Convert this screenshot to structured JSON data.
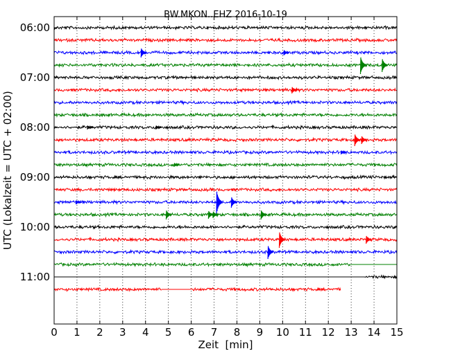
{
  "chart_data": {
    "type": "line",
    "title": "BW.MKON..EHZ 2016-10-19",
    "xlabel": "Zeit  [min]",
    "ylabel": "UTC (Lokalzeit = UTC + 02:00)",
    "xlim": [
      0,
      15
    ],
    "x_ticks": [
      "0",
      "1",
      "2",
      "3",
      "4",
      "5",
      "6",
      "7",
      "8",
      "9",
      "10",
      "11",
      "12",
      "13",
      "14",
      "15"
    ],
    "y_tick_labels": [
      "06:00",
      "07:00",
      "08:00",
      "09:00",
      "10:00",
      "11:00"
    ],
    "grid": "vertical-dotted",
    "trace_colors": [
      "#000000",
      "#ff0000",
      "#0000ff",
      "#008000"
    ],
    "traces": [
      {
        "start": "06:00",
        "color": "#000000",
        "segments": [
          [
            0,
            15
          ]
        ],
        "events": []
      },
      {
        "start": "06:15",
        "color": "#ff0000",
        "segments": [
          [
            0,
            15
          ]
        ],
        "events": []
      },
      {
        "start": "06:30",
        "color": "#0000ff",
        "segments": [
          [
            0,
            15
          ]
        ],
        "events": [
          {
            "t": 3.85,
            "amp": 7
          },
          {
            "t": 10.1,
            "amp": 4
          }
        ]
      },
      {
        "start": "06:45",
        "color": "#008000",
        "segments": [
          [
            0,
            15
          ]
        ],
        "events": [
          {
            "t": 13.45,
            "amp": 13
          },
          {
            "t": 14.4,
            "amp": 10
          }
        ]
      },
      {
        "start": "07:00",
        "color": "#000000",
        "segments": [
          [
            0,
            15
          ]
        ],
        "events": []
      },
      {
        "start": "07:15",
        "color": "#ff0000",
        "segments": [
          [
            0,
            15
          ]
        ],
        "events": [
          {
            "t": 10.45,
            "amp": 5
          }
        ]
      },
      {
        "start": "07:30",
        "color": "#0000ff",
        "segments": [
          [
            0,
            15
          ]
        ],
        "events": []
      },
      {
        "start": "07:45",
        "color": "#008000",
        "segments": [
          [
            0,
            15
          ]
        ],
        "events": []
      },
      {
        "start": "08:00",
        "color": "#000000",
        "segments": [
          [
            0,
            15
          ]
        ],
        "events": [
          {
            "t": 1.5,
            "amp": 3
          },
          {
            "t": 4.5,
            "amp": 3
          }
        ]
      },
      {
        "start": "08:15",
        "color": "#ff0000",
        "segments": [
          [
            0,
            15
          ]
        ],
        "events": [
          {
            "t": 13.2,
            "amp": 9
          },
          {
            "t": 13.5,
            "amp": 6
          }
        ]
      },
      {
        "start": "08:30",
        "color": "#0000ff",
        "segments": [
          [
            0,
            15
          ]
        ],
        "events": [
          {
            "t": 12.6,
            "amp": 3
          }
        ]
      },
      {
        "start": "08:45",
        "color": "#008000",
        "segments": [
          [
            0,
            15
          ]
        ],
        "events": [
          {
            "t": 5.3,
            "amp": 3
          }
        ]
      },
      {
        "start": "09:00",
        "color": "#000000",
        "segments": [
          [
            0,
            15
          ]
        ],
        "events": []
      },
      {
        "start": "09:15",
        "color": "#ff0000",
        "segments": [
          [
            0,
            15
          ]
        ],
        "events": []
      },
      {
        "start": "09:30",
        "color": "#0000ff",
        "segments": [
          [
            0,
            15
          ]
        ],
        "events": [
          {
            "t": 7.15,
            "amp": 18
          },
          {
            "t": 7.8,
            "amp": 8
          },
          {
            "t": 1.0,
            "amp": 3
          }
        ]
      },
      {
        "start": "09:45",
        "color": "#008000",
        "segments": [
          [
            0,
            15
          ]
        ],
        "events": [
          {
            "t": 4.95,
            "amp": 7
          },
          {
            "t": 6.8,
            "amp": 6
          },
          {
            "t": 7.0,
            "amp": 5
          },
          {
            "t": 9.1,
            "amp": 7
          }
        ]
      },
      {
        "start": "10:00",
        "color": "#000000",
        "segments": [
          [
            0,
            15
          ]
        ],
        "events": []
      },
      {
        "start": "10:15",
        "color": "#ff0000",
        "segments": [
          [
            0,
            15
          ]
        ],
        "events": [
          {
            "t": 9.9,
            "amp": 12
          },
          {
            "t": 13.7,
            "amp": 6
          }
        ]
      },
      {
        "start": "10:30",
        "color": "#0000ff",
        "segments": [
          [
            0,
            15
          ]
        ],
        "events": [
          {
            "t": 9.4,
            "amp": 10
          }
        ]
      },
      {
        "start": "10:45",
        "color": "#008000",
        "segments": [
          [
            0,
            12.95
          ]
        ],
        "flat": [
          [
            12.95,
            15
          ]
        ],
        "events": []
      },
      {
        "start": "11:00",
        "color": "#000000",
        "segments": [
          [
            13.6,
            15
          ]
        ],
        "flat": [
          [
            0,
            13.6
          ]
        ],
        "events": []
      },
      {
        "start": "11:15",
        "color": "#ff0000",
        "segments": [
          [
            0,
            4.7
          ],
          [
            5.95,
            12.55
          ]
        ],
        "flat": [
          [
            4.7,
            5.95
          ]
        ],
        "events": []
      }
    ]
  }
}
